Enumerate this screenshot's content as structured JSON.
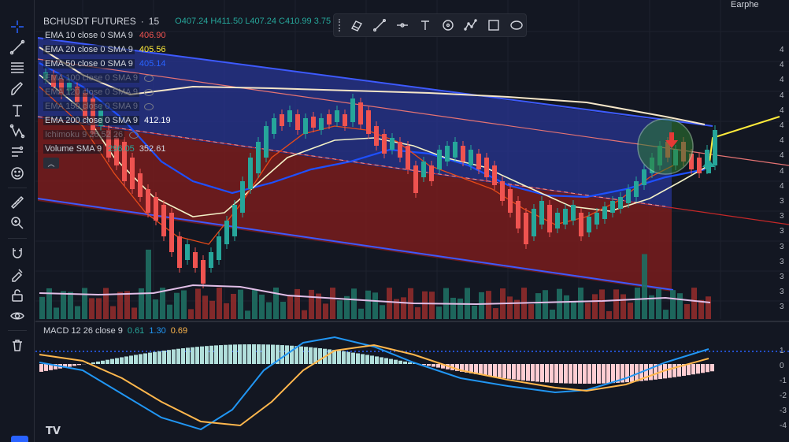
{
  "symbol": {
    "name": "BCHUSDT FUTURES",
    "interval": "15",
    "ohlc": "O407.24 H411.50 L407.24 C410.99 3.75 (+0.92%)"
  },
  "top_right_label": "Earphe",
  "indicators": [
    {
      "label": "EMA 10 close 0 SMA 9",
      "value": "406.90",
      "color": "#ef5350",
      "visible": true
    },
    {
      "label": "EMA 20 close 0 SMA 9",
      "value": "405.56",
      "color": "#ffeb3b",
      "visible": true
    },
    {
      "label": "EMA 50 close 0 SMA 9",
      "value": "405.14",
      "color": "#2962ff",
      "visible": true
    },
    {
      "label": "EMA 100 close 0 SMA 9",
      "value": "",
      "visible": false
    },
    {
      "label": "EMA 120 close 0 SMA 9",
      "value": "",
      "visible": false
    },
    {
      "label": "EMA 150 close 0 SMA 9",
      "value": "",
      "visible": false
    },
    {
      "label": "EMA 200 close 0 SMA 9",
      "value": "412.19",
      "color": "#ffffff",
      "visible": true
    },
    {
      "label": "Ichimoku 9 26 52 26",
      "value": "",
      "visible": false
    },
    {
      "label": "Volume SMA 9",
      "value": "296.05",
      "value2": "352.61",
      "color": "#26a69a",
      "visible": true
    }
  ],
  "macd": {
    "label": "MACD 12 26 close 9",
    "hist": "0.61",
    "macd": "1.30",
    "signal": "0.69"
  },
  "price_axis_partial_labels": [
    "4",
    "4",
    "4",
    "4",
    "4",
    "4",
    "4",
    "4",
    "4",
    "4",
    "3",
    "3",
    "3",
    "3",
    "3",
    "3",
    "3",
    "3"
  ],
  "macd_axis_labels": [
    "1",
    "0",
    "-1",
    "-2",
    "-3",
    "-4"
  ],
  "left_tools": [
    "crosshair-icon",
    "trend-line-icon",
    "fib-icon",
    "brush-icon",
    "text-icon",
    "pattern-icon",
    "forecast-icon",
    "emoji-icon",
    "ruler-icon",
    "zoom-icon",
    "magnet-icon",
    "lock-drawing-icon",
    "lock-icon",
    "eye-icon",
    "trash-icon"
  ],
  "drawing_tools": [
    "template-icon",
    "line-icon",
    "horizontal-ray-icon",
    "text-icon",
    "target-icon",
    "path-icon",
    "rectangle-icon",
    "ellipse-icon"
  ],
  "colors": {
    "bg": "#131722",
    "up": "#26a69a",
    "down": "#ef5350",
    "channel_blue": "#3f51b5",
    "channel_red": "#b71c1c"
  },
  "logo_text": "TV"
}
